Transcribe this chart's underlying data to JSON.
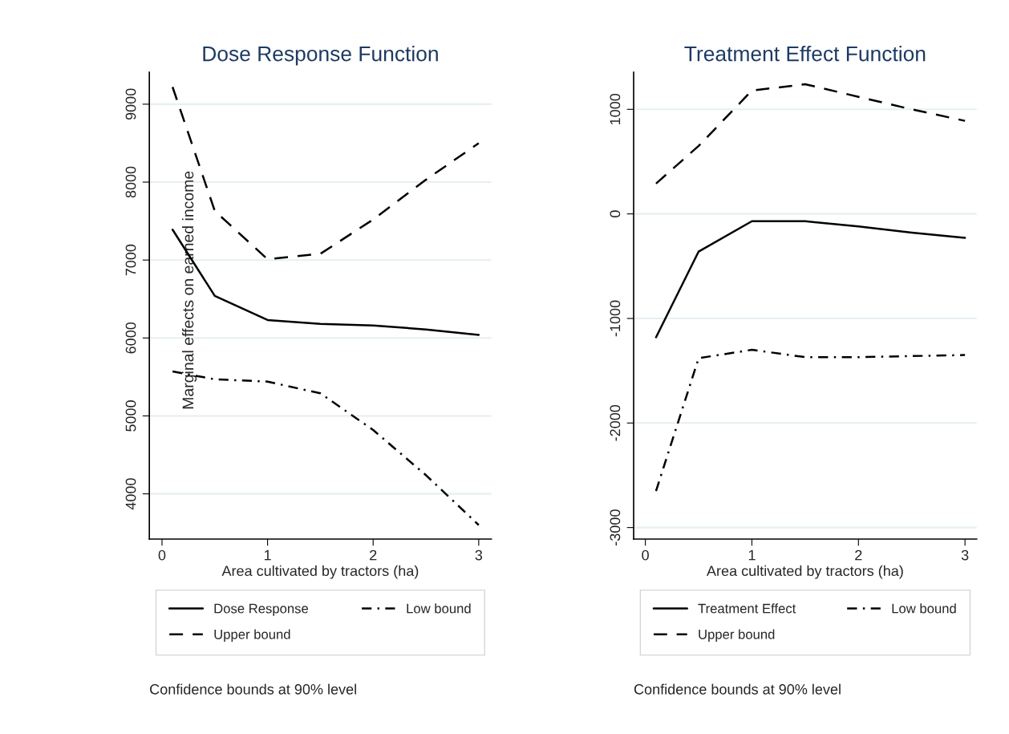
{
  "chart_data": [
    {
      "type": "line",
      "title": "Dose Response Function",
      "xlabel": "Area cultivated by tractors (ha)",
      "ylabel": "Marginal effects on earned income",
      "x": [
        0.1,
        0.5,
        1,
        1.5,
        2,
        2.5,
        3
      ],
      "series": [
        {
          "name": "Dose Response",
          "color": "#000000",
          "line_style": "solid",
          "values": [
            7390,
            6540,
            6230,
            6180,
            6160,
            6110,
            6040
          ]
        },
        {
          "name": "Low bound",
          "color": "#000000",
          "line_style": "dashdot",
          "values": [
            5570,
            5470,
            5440,
            5290,
            4820,
            4240,
            3600
          ]
        },
        {
          "name": "Upper bound",
          "color": "#000000",
          "line_style": "dashed",
          "values": [
            9220,
            7630,
            7010,
            7080,
            7520,
            8030,
            8500
          ]
        }
      ],
      "xlim": [
        -0.12,
        3.12
      ],
      "xticks": [
        0,
        1,
        2,
        3
      ],
      "ylim": [
        3420,
        9410
      ],
      "yticks": [
        4000,
        5000,
        6000,
        7000,
        8000,
        9000
      ],
      "grid": "y",
      "legend": "bottom",
      "marker": "none",
      "annotations": [
        "Confidence bounds at 90% level"
      ]
    },
    {
      "type": "line",
      "title": "Treatment Effect Function",
      "xlabel": "Area cultivated by tractors (ha)",
      "x": [
        0.1,
        0.5,
        1,
        1.5,
        2,
        2.5,
        3
      ],
      "series": [
        {
          "name": "Treatment Effect",
          "color": "#000000",
          "line_style": "solid",
          "values": [
            -1180,
            -360,
            -70,
            -70,
            -120,
            -180,
            -230
          ]
        },
        {
          "name": "Low bound",
          "color": "#000000",
          "line_style": "dashdot",
          "values": [
            -2650,
            -1380,
            -1300,
            -1370,
            -1370,
            -1360,
            -1350
          ]
        },
        {
          "name": "Upper bound",
          "color": "#000000",
          "line_style": "dashed",
          "values": [
            290,
            650,
            1180,
            1240,
            1120,
            1000,
            890
          ]
        }
      ],
      "xlim": [
        -0.11,
        3.11
      ],
      "xticks": [
        0,
        1,
        2,
        3
      ],
      "ylim": [
        -3110,
        1355
      ],
      "yticks": [
        -3000,
        -2000,
        -1000,
        0,
        1000
      ],
      "grid": "y",
      "legend": "bottom",
      "marker": "none",
      "annotations": [
        "Confidence bounds at 90% level"
      ]
    }
  ]
}
